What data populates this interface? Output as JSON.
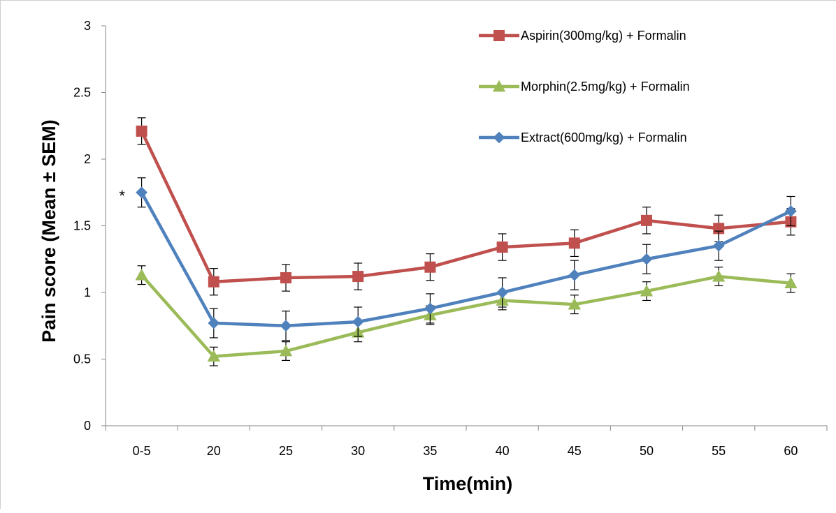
{
  "chart_data": {
    "type": "line",
    "title": "",
    "xlabel": "Time(min)",
    "ylabel": "Pain score (Mean ± SEM)",
    "categories": [
      "0-5",
      "20",
      "25",
      "30",
      "35",
      "40",
      "45",
      "50",
      "55",
      "60"
    ],
    "ylim": [
      0,
      3
    ],
    "yticks": [
      "0",
      "0.5",
      "1",
      "1.5",
      "2",
      "2.5",
      "3"
    ],
    "grid": false,
    "legend_position": "top-right",
    "annotations": [
      {
        "text": "*",
        "category": "0-5",
        "series": "Extract(600mg/kg) + Formalin"
      }
    ],
    "series": [
      {
        "name": "Aspirin(300mg/kg) + Formalin",
        "color": "#c0504d",
        "marker": "square",
        "values": [
          2.21,
          1.08,
          1.11,
          1.12,
          1.19,
          1.34,
          1.37,
          1.54,
          1.48,
          1.53
        ],
        "errors": [
          0.1,
          0.1,
          0.1,
          0.1,
          0.1,
          0.1,
          0.1,
          0.1,
          0.1,
          0.1
        ]
      },
      {
        "name": "Morphin(2.5mg/kg) + Formalin",
        "color": "#9bbb59",
        "marker": "triangle",
        "values": [
          1.13,
          0.52,
          0.56,
          0.7,
          0.83,
          0.94,
          0.91,
          1.01,
          1.12,
          1.07
        ],
        "errors": [
          0.07,
          0.07,
          0.07,
          0.07,
          0.07,
          0.07,
          0.07,
          0.07,
          0.07,
          0.07
        ]
      },
      {
        "name": "Extract(600mg/kg) + Formalin",
        "color": "#4f81bd",
        "marker": "diamond",
        "values": [
          1.75,
          0.77,
          0.75,
          0.78,
          0.88,
          1.0,
          1.13,
          1.25,
          1.35,
          1.61
        ],
        "errors": [
          0.11,
          0.11,
          0.11,
          0.11,
          0.11,
          0.11,
          0.11,
          0.11,
          0.11,
          0.11
        ]
      }
    ]
  }
}
